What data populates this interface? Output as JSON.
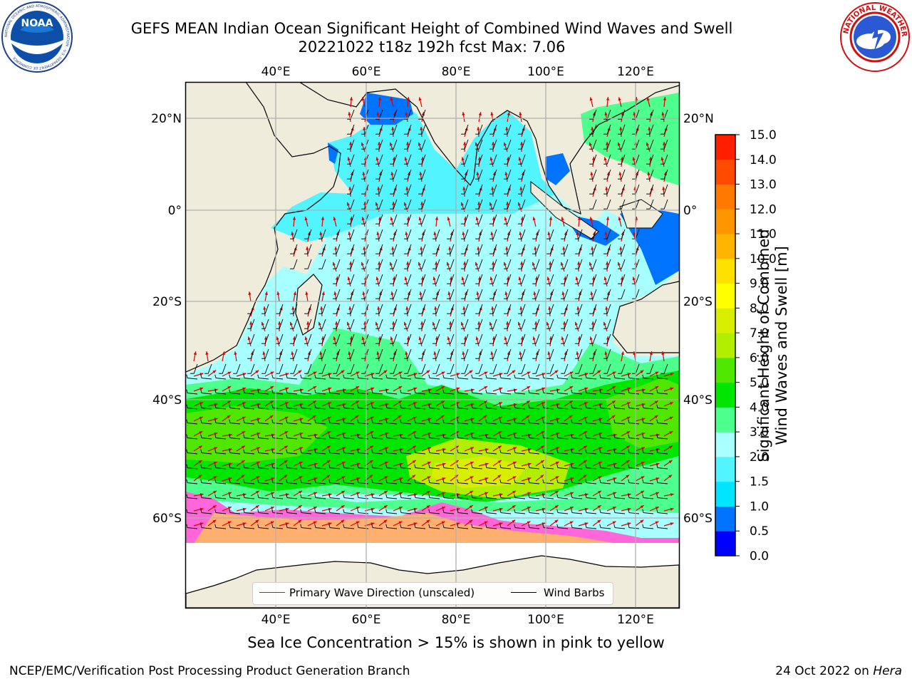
{
  "title_line1": "GEFS MEAN Indian Ocean Significant Height of Combined Wind Waves and Swell",
  "title_line2": "20221022 t18z 192h fcst   Max: 7.06",
  "map": {
    "top_lon_labels": [
      "40°E",
      "60°E",
      "80°E",
      "100°E",
      "120°E"
    ],
    "bottom_lon_labels": [
      "40°E",
      "60°E",
      "80°E",
      "100°E",
      "120°E"
    ],
    "left_lat_labels": [
      "20°N",
      "0°",
      "20°S",
      "40°S",
      "60°S"
    ],
    "right_lat_labels": [
      "20°N",
      "0°",
      "20°S",
      "40°S",
      "60°S"
    ]
  },
  "legend": {
    "wave_label": "Primary Wave Direction (unscaled)",
    "wind_label": "Wind Barbs",
    "wave_color": "#ff0000",
    "wind_color": "#000000"
  },
  "colorbar": {
    "label": "Significant Height of Combined Wind Waves and Swell [m]",
    "ticks": [
      "0.0",
      "0.5",
      "1.0",
      "1.5",
      "2.0",
      "3.0",
      "4.0",
      "5.0",
      "6.0",
      "7.0",
      "8.0",
      "9.0",
      "10.0",
      "11.0",
      "12.0",
      "13.0",
      "14.0",
      "15.0"
    ],
    "colors": [
      "#0000ff",
      "#0073ff",
      "#00e5ff",
      "#52f5ff",
      "#aaffff",
      "#4dff8c",
      "#00e600",
      "#4fe600",
      "#b2ee00",
      "#d8ee00",
      "#ffff00",
      "#ffe100",
      "#ffb400",
      "#ff9600",
      "#ff7800",
      "#ff4b00",
      "#ff1e00"
    ]
  },
  "note": "Sea Ice Concentration > 15% is shown in pink to yellow",
  "footer": {
    "left": "NCEP/EMC/Verification Post Processing Product Generation Branch",
    "date": "24 Oct 2022 on",
    "machine": "Hera"
  },
  "logos": {
    "noaa_text": "NOAA",
    "noaa_ring": "NATIONAL OCEANIC AND ATMOSPHERIC ADMINISTRATION · U.S. DEPARTMENT OF COMMERCE",
    "nws_ring": "NATIONAL WEATHER SERVICE"
  }
}
